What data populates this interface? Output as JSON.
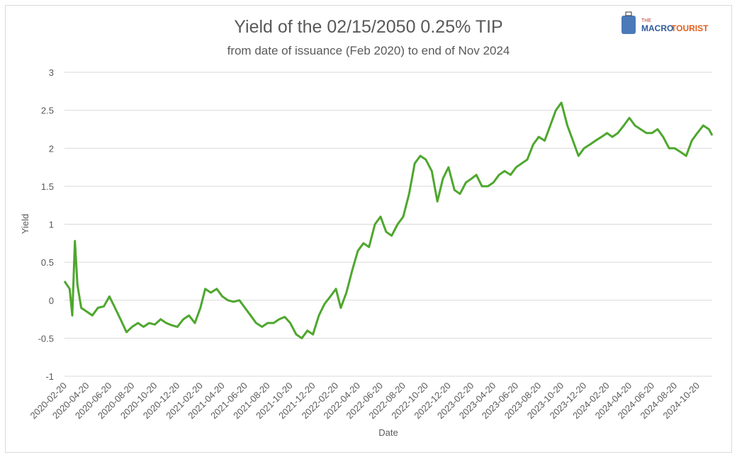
{
  "chart_data": {
    "type": "line",
    "title": "Yield of the 02/15/2050 0.25% TIP",
    "subtitle": "from date of issuance (Feb 2020) to end of Nov 2024",
    "xlabel": "Date",
    "ylabel": "Yield",
    "logo": {
      "small": "THE",
      "brand": "MACRO",
      "brand2": "TOURIST"
    },
    "xlim": [
      "2020-02-20",
      "2024-11-29"
    ],
    "xticks": [
      "2020-02-20",
      "2020-04-20",
      "2020-06-20",
      "2020-08-20",
      "2020-10-20",
      "2020-12-20",
      "2021-02-20",
      "2021-04-20",
      "2021-06-20",
      "2021-08-20",
      "2021-10-20",
      "2021-12-20",
      "2022-02-20",
      "2022-04-20",
      "2022-06-20",
      "2022-08-20",
      "2022-10-20",
      "2022-12-20",
      "2023-02-20",
      "2023-04-20",
      "2023-06-20",
      "2023-08-20",
      "2023-10-20",
      "2023-12-20",
      "2024-02-20",
      "2024-04-20",
      "2024-06-20",
      "2024-08-20",
      "2024-10-20"
    ],
    "ylim": [
      -1,
      3
    ],
    "yticks": [
      -1,
      -0.5,
      0,
      0.5,
      1,
      1.5,
      2,
      2.5,
      3
    ],
    "grid": true,
    "x": [
      "2020-02-20",
      "2020-03-05",
      "2020-03-12",
      "2020-03-19",
      "2020-03-26",
      "2020-04-05",
      "2020-04-20",
      "2020-05-05",
      "2020-05-20",
      "2020-06-05",
      "2020-06-20",
      "2020-07-05",
      "2020-07-20",
      "2020-08-05",
      "2020-08-20",
      "2020-09-05",
      "2020-09-20",
      "2020-10-05",
      "2020-10-20",
      "2020-11-05",
      "2020-11-20",
      "2020-12-05",
      "2020-12-20",
      "2021-01-05",
      "2021-01-20",
      "2021-02-05",
      "2021-02-20",
      "2021-03-05",
      "2021-03-20",
      "2021-04-05",
      "2021-04-20",
      "2021-05-05",
      "2021-05-20",
      "2021-06-05",
      "2021-06-20",
      "2021-07-05",
      "2021-07-20",
      "2021-08-05",
      "2021-08-20",
      "2021-09-05",
      "2021-09-20",
      "2021-10-05",
      "2021-10-20",
      "2021-11-05",
      "2021-11-20",
      "2021-12-05",
      "2021-12-20",
      "2022-01-05",
      "2022-01-20",
      "2022-02-05",
      "2022-02-20",
      "2022-03-05",
      "2022-03-20",
      "2022-04-05",
      "2022-04-20",
      "2022-05-05",
      "2022-05-20",
      "2022-06-05",
      "2022-06-20",
      "2022-07-05",
      "2022-07-20",
      "2022-08-05",
      "2022-08-20",
      "2022-09-05",
      "2022-09-20",
      "2022-10-05",
      "2022-10-20",
      "2022-11-05",
      "2022-11-20",
      "2022-12-05",
      "2022-12-20",
      "2023-01-05",
      "2023-01-20",
      "2023-02-05",
      "2023-02-20",
      "2023-03-05",
      "2023-03-20",
      "2023-04-05",
      "2023-04-20",
      "2023-05-05",
      "2023-05-20",
      "2023-06-05",
      "2023-06-20",
      "2023-07-05",
      "2023-07-20",
      "2023-08-05",
      "2023-08-20",
      "2023-09-05",
      "2023-09-20",
      "2023-10-05",
      "2023-10-20",
      "2023-11-05",
      "2023-11-20",
      "2023-12-05",
      "2023-12-20",
      "2024-01-05",
      "2024-01-20",
      "2024-02-05",
      "2024-02-20",
      "2024-03-05",
      "2024-03-20",
      "2024-04-05",
      "2024-04-20",
      "2024-05-05",
      "2024-05-20",
      "2024-06-05",
      "2024-06-20",
      "2024-07-05",
      "2024-07-20",
      "2024-08-05",
      "2024-08-20",
      "2024-09-05",
      "2024-09-20",
      "2024-10-05",
      "2024-10-20",
      "2024-11-05",
      "2024-11-20",
      "2024-11-29"
    ],
    "series": [
      {
        "name": "Yield",
        "color": "#4ea72e",
        "values": [
          0.25,
          0.15,
          -0.2,
          0.78,
          0.2,
          -0.1,
          -0.15,
          -0.2,
          -0.1,
          -0.08,
          0.05,
          -0.1,
          -0.25,
          -0.42,
          -0.35,
          -0.3,
          -0.35,
          -0.3,
          -0.32,
          -0.25,
          -0.3,
          -0.33,
          -0.35,
          -0.25,
          -0.2,
          -0.3,
          -0.1,
          0.15,
          0.1,
          0.15,
          0.05,
          0.0,
          -0.02,
          0.0,
          -0.1,
          -0.2,
          -0.3,
          -0.35,
          -0.3,
          -0.3,
          -0.25,
          -0.22,
          -0.3,
          -0.45,
          -0.5,
          -0.4,
          -0.45,
          -0.2,
          -0.05,
          0.05,
          0.15,
          -0.1,
          0.1,
          0.4,
          0.65,
          0.75,
          0.7,
          1.0,
          1.1,
          0.9,
          0.85,
          1.0,
          1.1,
          1.4,
          1.8,
          1.9,
          1.85,
          1.7,
          1.3,
          1.6,
          1.75,
          1.45,
          1.4,
          1.55,
          1.6,
          1.65,
          1.5,
          1.5,
          1.55,
          1.65,
          1.7,
          1.65,
          1.75,
          1.8,
          1.85,
          2.05,
          2.15,
          2.1,
          2.3,
          2.5,
          2.6,
          2.3,
          2.1,
          1.9,
          2.0,
          2.05,
          2.1,
          2.15,
          2.2,
          2.15,
          2.2,
          2.3,
          2.4,
          2.3,
          2.25,
          2.2,
          2.2,
          2.25,
          2.15,
          2.0,
          2.0,
          1.95,
          1.9,
          2.1,
          2.2,
          2.3,
          2.25,
          2.17
        ]
      }
    ]
  }
}
